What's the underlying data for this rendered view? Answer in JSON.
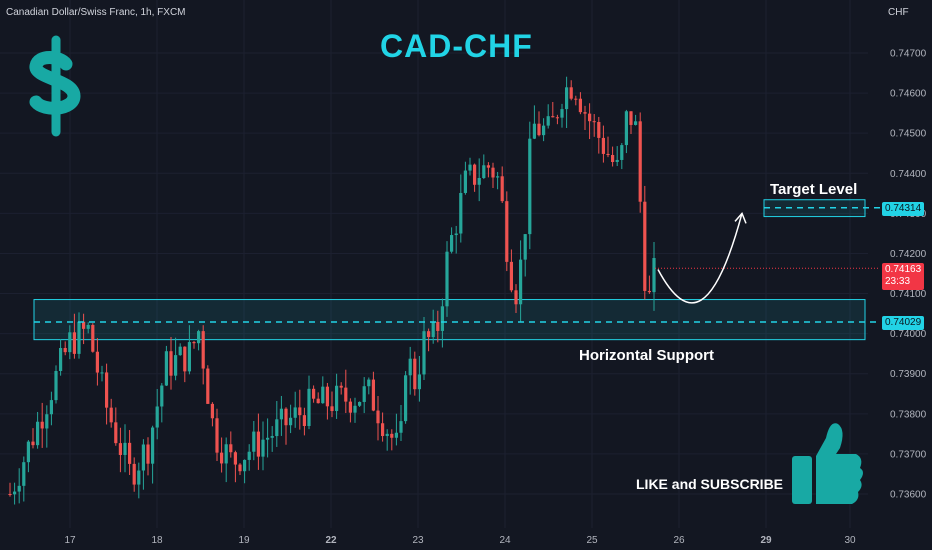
{
  "header": {
    "symbol_title": "Canadian Dollar/Swiss Franc, 1h, FXCM",
    "currency": "CHF"
  },
  "annotations": {
    "pair_title": "CAD-CHF",
    "target_label": "Target Level",
    "support_label": "Horizontal Support",
    "cta": "LIKE and SUBSCRIBE"
  },
  "price_tags": {
    "target": "0.74314",
    "current": "0.74163",
    "countdown": "23:33",
    "support": "0.74029"
  },
  "colors": {
    "background": "#131722",
    "up": "#26a69a",
    "down": "#ef5350",
    "accent": "#22d3e6",
    "current": "#f23645"
  },
  "icons": [
    "dollar-sign-icon",
    "thumbs-up-icon"
  ],
  "chart_data": {
    "type": "candlestick",
    "title": "CAD-CHF",
    "y_ticks": [
      "0.74700",
      "0.74600",
      "0.74500",
      "0.74400",
      "0.74300",
      "0.74200",
      "0.74100",
      "0.74000",
      "0.73900",
      "0.73800",
      "0.73700",
      "0.73600"
    ],
    "x_ticks": [
      "17",
      "18",
      "19",
      "22",
      "23",
      "24",
      "25",
      "26",
      "29",
      "30"
    ],
    "ylim": [
      0.7353,
      0.7477
    ],
    "levels": {
      "support_zone": [
        0.73985,
        0.74085
      ],
      "support_line": 0.74029,
      "target_zone": [
        0.74292,
        0.74334
      ],
      "target_line": 0.74314,
      "current_price": 0.74163
    },
    "path_anchors": [
      {
        "x": 16,
        "c": 0.736
      },
      {
        "x": 17,
        "c": 0.7398
      },
      {
        "x": 17.3,
        "c": 0.7401
      },
      {
        "x": 17.6,
        "c": 0.7382
      },
      {
        "x": 18,
        "c": 0.7365
      },
      {
        "x": 18.3,
        "c": 0.7372
      },
      {
        "x": 18.6,
        "c": 0.7392
      },
      {
        "x": 19,
        "c": 0.7395
      },
      {
        "x": 19.15,
        "c": 0.7401
      },
      {
        "x": 19.4,
        "c": 0.7375
      },
      {
        "x": 19.7,
        "c": 0.7368
      },
      {
        "x": 21,
        "c": 0.7382
      },
      {
        "x": 22,
        "c": 0.7385
      },
      {
        "x": 22.5,
        "c": 0.737
      },
      {
        "x": 22.6,
        "c": 0.7395
      },
      {
        "x": 22.75,
        "c": 0.7388
      },
      {
        "x": 22.9,
        "c": 0.7398
      },
      {
        "x": 23.1,
        "c": 0.7399
      },
      {
        "x": 23.3,
        "c": 0.742
      },
      {
        "x": 23.6,
        "c": 0.7438
      },
      {
        "x": 24,
        "c": 0.7442
      },
      {
        "x": 24.15,
        "c": 0.7438
      },
      {
        "x": 24.3,
        "c": 0.742
      },
      {
        "x": 24.42,
        "c": 0.741
      },
      {
        "x": 24.55,
        "c": 0.742
      },
      {
        "x": 24.7,
        "c": 0.7452
      },
      {
        "x": 25,
        "c": 0.745
      },
      {
        "x": 25.2,
        "c": 0.746
      },
      {
        "x": 25.4,
        "c": 0.7463
      },
      {
        "x": 25.6,
        "c": 0.7455
      },
      {
        "x": 26,
        "c": 0.7444
      },
      {
        "x": 26.15,
        "c": 0.744
      },
      {
        "x": 26.3,
        "c": 0.7456
      },
      {
        "x": 26.45,
        "c": 0.745
      },
      {
        "x": 26.55,
        "c": 0.7418
      },
      {
        "x": 26.65,
        "c": 0.7408
      },
      {
        "x": 26.75,
        "c": 0.7416
      }
    ],
    "projection": [
      {
        "x": 26.8,
        "c": 0.7416
      },
      {
        "x": 27.3,
        "c": 0.7402
      },
      {
        "x": 27.75,
        "c": 0.7405
      },
      {
        "x": 28.2,
        "c": 0.743
      }
    ]
  }
}
